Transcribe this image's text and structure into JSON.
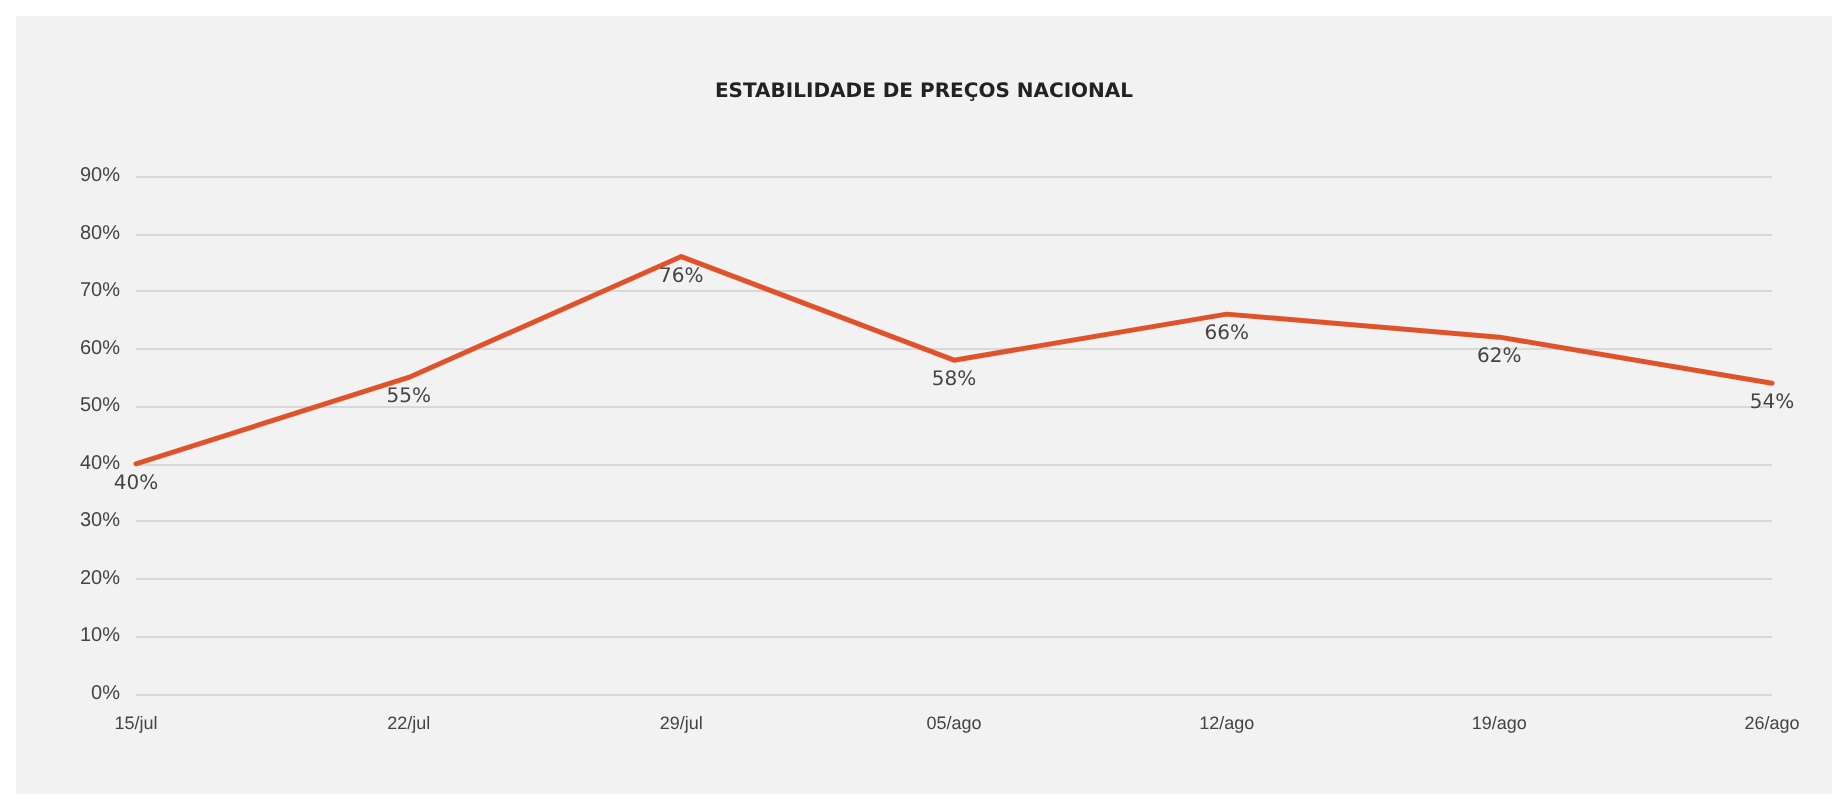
{
  "chart_data": {
    "type": "line",
    "title": "ESTABILIDADE DE PREÇOS NACIONAL",
    "categories": [
      "15/jul",
      "22/jul",
      "29/jul",
      "05/ago",
      "12/ago",
      "19/ago",
      "26/ago"
    ],
    "series": [
      {
        "color": "#e0522a",
        "values": [
          40,
          55,
          76,
          58,
          66,
          62,
          54
        ],
        "value_labels": [
          "40%",
          "55%",
          "76%",
          "58%",
          "66%",
          "62%",
          "54%"
        ]
      }
    ],
    "ylim": [
      0,
      90
    ],
    "yticks": [
      {
        "value": 0,
        "label": "0%"
      },
      {
        "value": 10,
        "label": "10%"
      },
      {
        "value": 20,
        "label": "20%"
      },
      {
        "value": 30,
        "label": "30%"
      },
      {
        "value": 40,
        "label": "40%"
      },
      {
        "value": 50,
        "label": "50%"
      },
      {
        "value": 60,
        "label": "60%"
      },
      {
        "value": 70,
        "label": "70%"
      },
      {
        "value": 80,
        "label": "80%"
      },
      {
        "value": 90,
        "label": "90%"
      }
    ],
    "grid": "y",
    "marker": "none",
    "line_style": "solid"
  }
}
